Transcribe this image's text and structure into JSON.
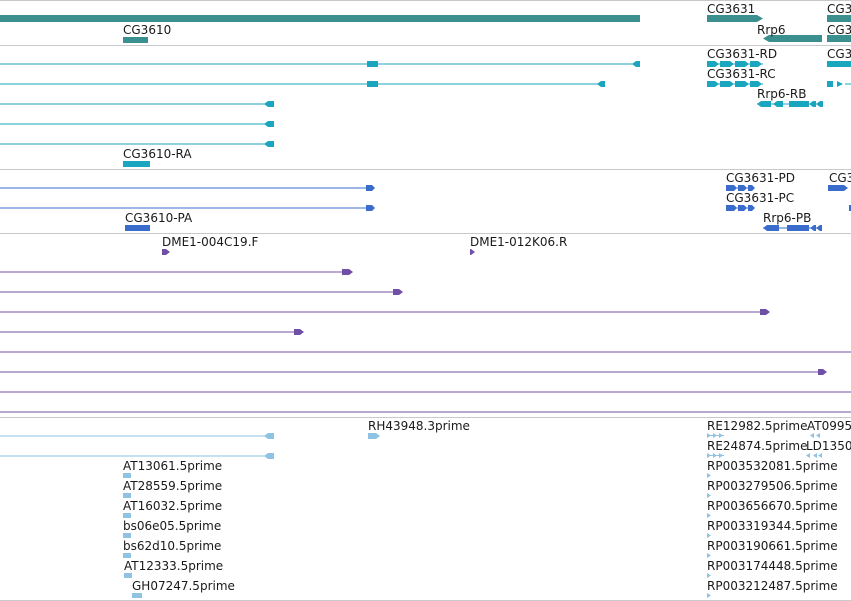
{
  "colors": {
    "genes": "#3b8f8f",
    "transcripts": "#1aa6bf",
    "proteins": "#3a6ccc",
    "clones": "#7050a6",
    "ests": "#8ec3e3",
    "separator": "#c9c9c9"
  },
  "tracks": {
    "genes": {
      "features": [
        {
          "name": "CG3610",
          "label": "CG3610"
        },
        {
          "name": "CG3631",
          "label": "CG3631"
        },
        {
          "name": "Rrp6",
          "label": "Rrp6"
        },
        {
          "name": "CG3-clipped-top",
          "label": "CG3"
        },
        {
          "name": "CG3-clipped-bottom",
          "label": "CG3"
        }
      ]
    },
    "transcripts": {
      "features": [
        {
          "name": "CG3631-RD",
          "label": "CG3631-RD"
        },
        {
          "name": "CG3631-RC",
          "label": "CG3631-RC"
        },
        {
          "name": "Rrp6-RB",
          "label": "Rrp6-RB"
        },
        {
          "name": "CG3610-RA",
          "label": "CG3610-RA"
        },
        {
          "name": "CG3-clipped",
          "label": "CG3"
        }
      ]
    },
    "proteins": {
      "features": [
        {
          "name": "CG3631-PD",
          "label": "CG3631-PD"
        },
        {
          "name": "CG3631-PC",
          "label": "CG3631-PC"
        },
        {
          "name": "Rrp6-PB",
          "label": "Rrp6-PB"
        },
        {
          "name": "CG3610-PA",
          "label": "CG3610-PA"
        },
        {
          "name": "CG3-clipped",
          "label": "CG3"
        }
      ]
    },
    "clones": {
      "features": [
        {
          "name": "DME1-004C19.F",
          "label": "DME1-004C19.F"
        },
        {
          "name": "DME1-012K06.R",
          "label": "DME1-012K06.R"
        }
      ]
    },
    "ests": {
      "features": [
        {
          "name": "RH43948.3prime",
          "label": "RH43948.3prime"
        },
        {
          "name": "RE12982.5prime",
          "label": "RE12982.5prime"
        },
        {
          "name": "AT0995-clipped",
          "label": "AT0995"
        },
        {
          "name": "RE24874.5prime",
          "label": "RE24874.5prime"
        },
        {
          "name": "LD1350-clipped",
          "label": "LD1350"
        },
        {
          "name": "AT13061.5prime",
          "label": "AT13061.5prime"
        },
        {
          "name": "RP003532081.5prime",
          "label": "RP003532081.5prime"
        },
        {
          "name": "AT28559.5prime",
          "label": "AT28559.5prime"
        },
        {
          "name": "RP003279506.5prime",
          "label": "RP003279506.5prime"
        },
        {
          "name": "AT16032.5prime",
          "label": "AT16032.5prime"
        },
        {
          "name": "RP003656670.5prime",
          "label": "RP003656670.5prime"
        },
        {
          "name": "bs06e05.5prime",
          "label": "bs06e05.5prime"
        },
        {
          "name": "RP003319344.5prime",
          "label": "RP003319344.5prime"
        },
        {
          "name": "bs62d10.5prime",
          "label": "bs62d10.5prime"
        },
        {
          "name": "RP003190661.5prime",
          "label": "RP003190661.5prime"
        },
        {
          "name": "AT12333.5prime",
          "label": "AT12333.5prime"
        },
        {
          "name": "RP003174448.5prime",
          "label": "RP003174448.5prime"
        },
        {
          "name": "GH07247.5prime",
          "label": "GH07247.5prime"
        },
        {
          "name": "RP003212487.5prime",
          "label": "RP003212487.5prime"
        }
      ]
    }
  }
}
